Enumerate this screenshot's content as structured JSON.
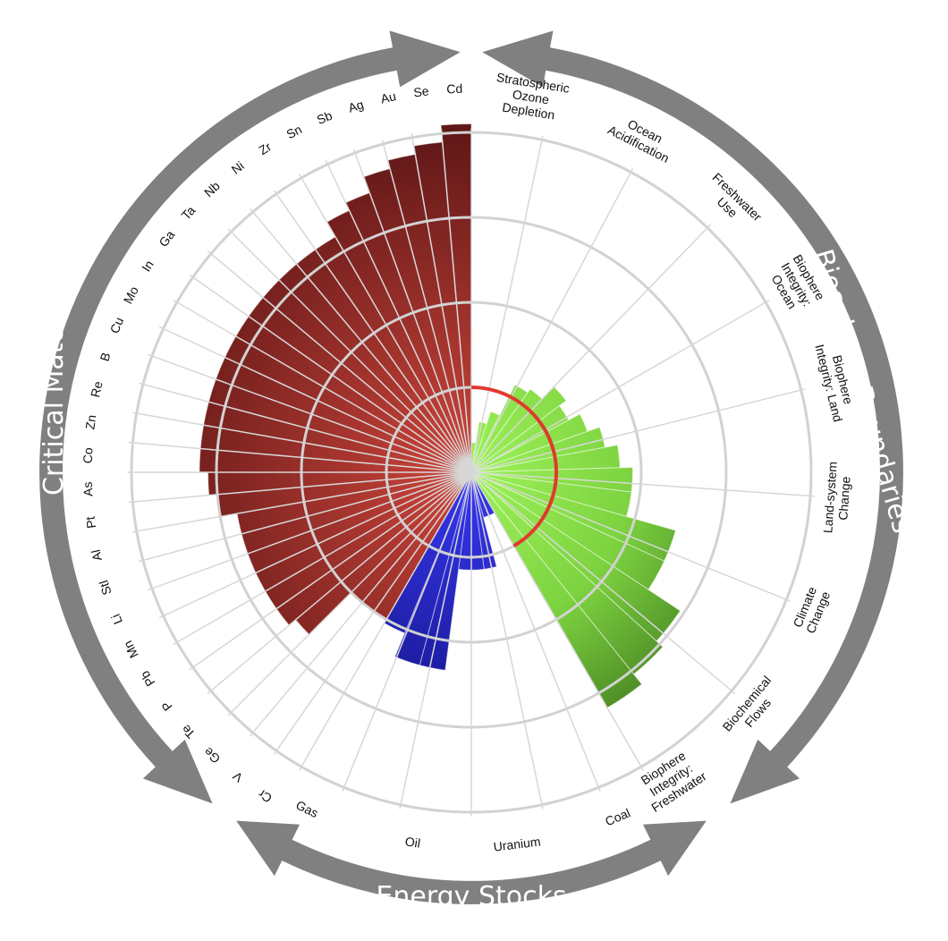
{
  "chart_data": {
    "type": "radial-bar",
    "title": "",
    "scale": {
      "rings": [
        1,
        2,
        3,
        4
      ],
      "max": 4
    },
    "boundary_marker": {
      "value": 1.0,
      "color": "#e03a2f"
    },
    "groups": [
      {
        "name": "Critical Materials",
        "color": "#a8322b",
        "color_dark": "#5c1616",
        "categories": [
          "Cr",
          "V",
          "Ge",
          "Te",
          "P",
          "Pb",
          "Mn",
          "Li",
          "Stl",
          "Al",
          "Pt",
          "As",
          "Co",
          "Zn",
          "Re",
          "B",
          "Cu",
          "Mo",
          "In",
          "Ga",
          "Ta",
          "Nb",
          "Ni",
          "Zr",
          "Sn",
          "Sb",
          "Ag",
          "Au",
          "Se",
          "Cd"
        ],
        "values": [
          2.0,
          2.0,
          2.0,
          2.7,
          2.8,
          2.8,
          2.8,
          2.8,
          2.8,
          2.8,
          3.0,
          3.1,
          3.2,
          3.2,
          3.2,
          3.2,
          3.2,
          3.2,
          3.2,
          3.2,
          3.2,
          3.2,
          3.2,
          3.2,
          3.4,
          3.5,
          3.7,
          3.8,
          3.9,
          4.1
        ]
      },
      {
        "name": "Biosphere Boundaries",
        "color": "#8ee548",
        "color_dark": "#2f5f16",
        "categories": [
          "Stratospheric Ozone Depletion",
          "Ocean Acidification",
          "Freshwater Use",
          "Biophere Integrity: Ocean",
          "Biophere Integrity: Land",
          "Land-system Change",
          "Climate Change",
          "Biochemical Flows",
          "Biophere Integrity: Freshwater"
        ],
        "values": [
          0.0,
          0.0,
          0.0,
          0.0,
          0.0,
          0.0,
          0.0,
          0.0,
          0.0
        ]
      },
      {
        "name": "Energy Stocks",
        "color": "#2727d8",
        "color_dark": "#151590",
        "categories": [
          "Coal",
          "Uranium",
          "Oil",
          "Gas"
        ],
        "values": [
          0.0,
          0.0,
          0.0,
          0.0
        ]
      }
    ],
    "bar_values_in_slot_order": {
      "biosphere": [
        0.35,
        0.6,
        0.75,
        1.15,
        1.2,
        1.4,
        1.3,
        1.45,
        1.6,
        1.75,
        1.9,
        1.9,
        2.5,
        2.5,
        2.95,
        3.05,
        3.2
      ],
      "energy": [
        0.55,
        0.55,
        1.15,
        1.15,
        1.15,
        2.35,
        2.35,
        2.05
      ]
    }
  },
  "labels": {
    "materials_group": "Critical Materials",
    "biosphere_group": "Biosphere Boundaries",
    "energy_group": "Energy Stocks"
  },
  "colors": {
    "arrow": "#808080",
    "ring": "#d2d2d2"
  }
}
